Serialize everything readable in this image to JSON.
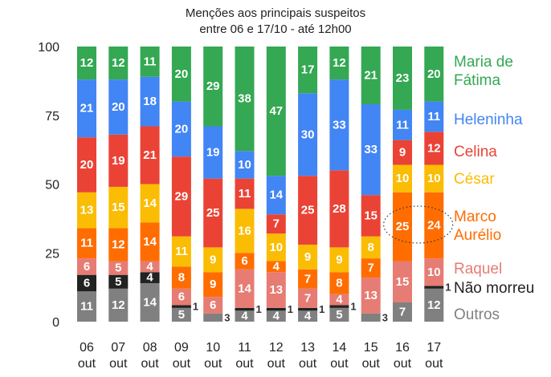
{
  "chart_data": {
    "type": "bar",
    "stacked": true,
    "title": "Menções aos principais suspeitos",
    "subtitle": "entre 06 e 17/10 - até 12h00",
    "categories": [
      [
        "06",
        "out"
      ],
      [
        "07",
        "out"
      ],
      [
        "08",
        "out"
      ],
      [
        "09",
        "out"
      ],
      [
        "10",
        "out"
      ],
      [
        "11",
        "out"
      ],
      [
        "12",
        "out"
      ],
      [
        "13",
        "out"
      ],
      [
        "14",
        "out"
      ],
      [
        "15",
        "out"
      ],
      [
        "16",
        "out"
      ],
      [
        "17",
        "out"
      ]
    ],
    "yticks": [
      0,
      25,
      50,
      75,
      100
    ],
    "ylim": [
      0,
      100
    ],
    "legend_position": "right",
    "highlight": {
      "series": "Marco Aurélio",
      "categories": [
        "16",
        "17"
      ],
      "style": "dotted-ellipse"
    },
    "series": [
      {
        "name": "Outros",
        "color": "#808080",
        "values": [
          11,
          12,
          14,
          5,
          3,
          4,
          4,
          4,
          5,
          3,
          7,
          12
        ]
      },
      {
        "name": "Não morreu",
        "color": "#222222",
        "values": [
          6,
          5,
          4,
          1,
          0,
          1,
          1,
          1,
          1,
          0,
          0,
          1
        ]
      },
      {
        "name": "Raquel",
        "color": "#e67c73",
        "values": [
          6,
          5,
          4,
          6,
          6,
          14,
          13,
          7,
          4,
          13,
          15,
          10
        ]
      },
      {
        "name": "Marco Aurélio",
        "color": "#ff6d01",
        "values": [
          11,
          12,
          14,
          8,
          9,
          6,
          4,
          7,
          8,
          7,
          25,
          24
        ]
      },
      {
        "name": "César",
        "color": "#fbbc04",
        "values": [
          13,
          15,
          14,
          11,
          9,
          16,
          10,
          9,
          9,
          8,
          10,
          10
        ]
      },
      {
        "name": "Celina",
        "color": "#ea4335",
        "values": [
          20,
          19,
          21,
          29,
          25,
          11,
          7,
          25,
          28,
          15,
          9,
          12
        ]
      },
      {
        "name": "Heleninha",
        "color": "#4285f4",
        "values": [
          21,
          20,
          18,
          20,
          19,
          10,
          14,
          30,
          33,
          33,
          11,
          11
        ]
      },
      {
        "name": "Maria de Fátima",
        "color": "#34a853",
        "values": [
          12,
          12,
          11,
          20,
          29,
          38,
          47,
          17,
          12,
          21,
          23,
          20
        ]
      }
    ],
    "legend": [
      {
        "lines": [
          "Maria de",
          "Fátima"
        ],
        "color": "#34a853"
      },
      {
        "lines": [
          "Heleninha"
        ],
        "color": "#4285f4"
      },
      {
        "lines": [
          "Celina"
        ],
        "color": "#ea4335"
      },
      {
        "lines": [
          "César"
        ],
        "color": "#fbbc04"
      },
      {
        "lines": [
          "Marco",
          "Aurélio"
        ],
        "color": "#ff6d01"
      },
      {
        "lines": [
          "Raquel"
        ],
        "color": "#e67c73"
      },
      {
        "lines": [
          "Não morreu"
        ],
        "color": "#222222"
      },
      {
        "lines": [
          "Outros"
        ],
        "color": "#808080"
      }
    ]
  }
}
